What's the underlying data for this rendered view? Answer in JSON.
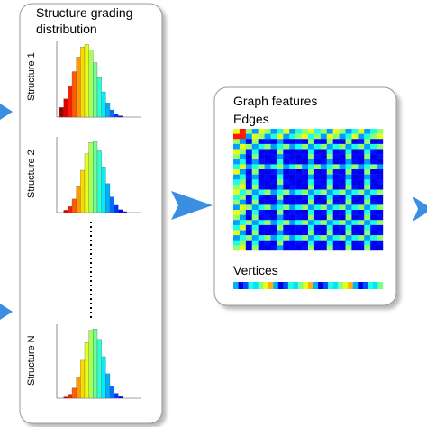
{
  "panel_left": {
    "title_lines": [
      "Structure grading",
      "distribution"
    ],
    "structures": [
      "Structure 1",
      "Structure 2",
      "Structure N"
    ]
  },
  "panel_right": {
    "title": "Graph features",
    "edges_label": "Edges",
    "vertices_label": "Vertices"
  }
}
